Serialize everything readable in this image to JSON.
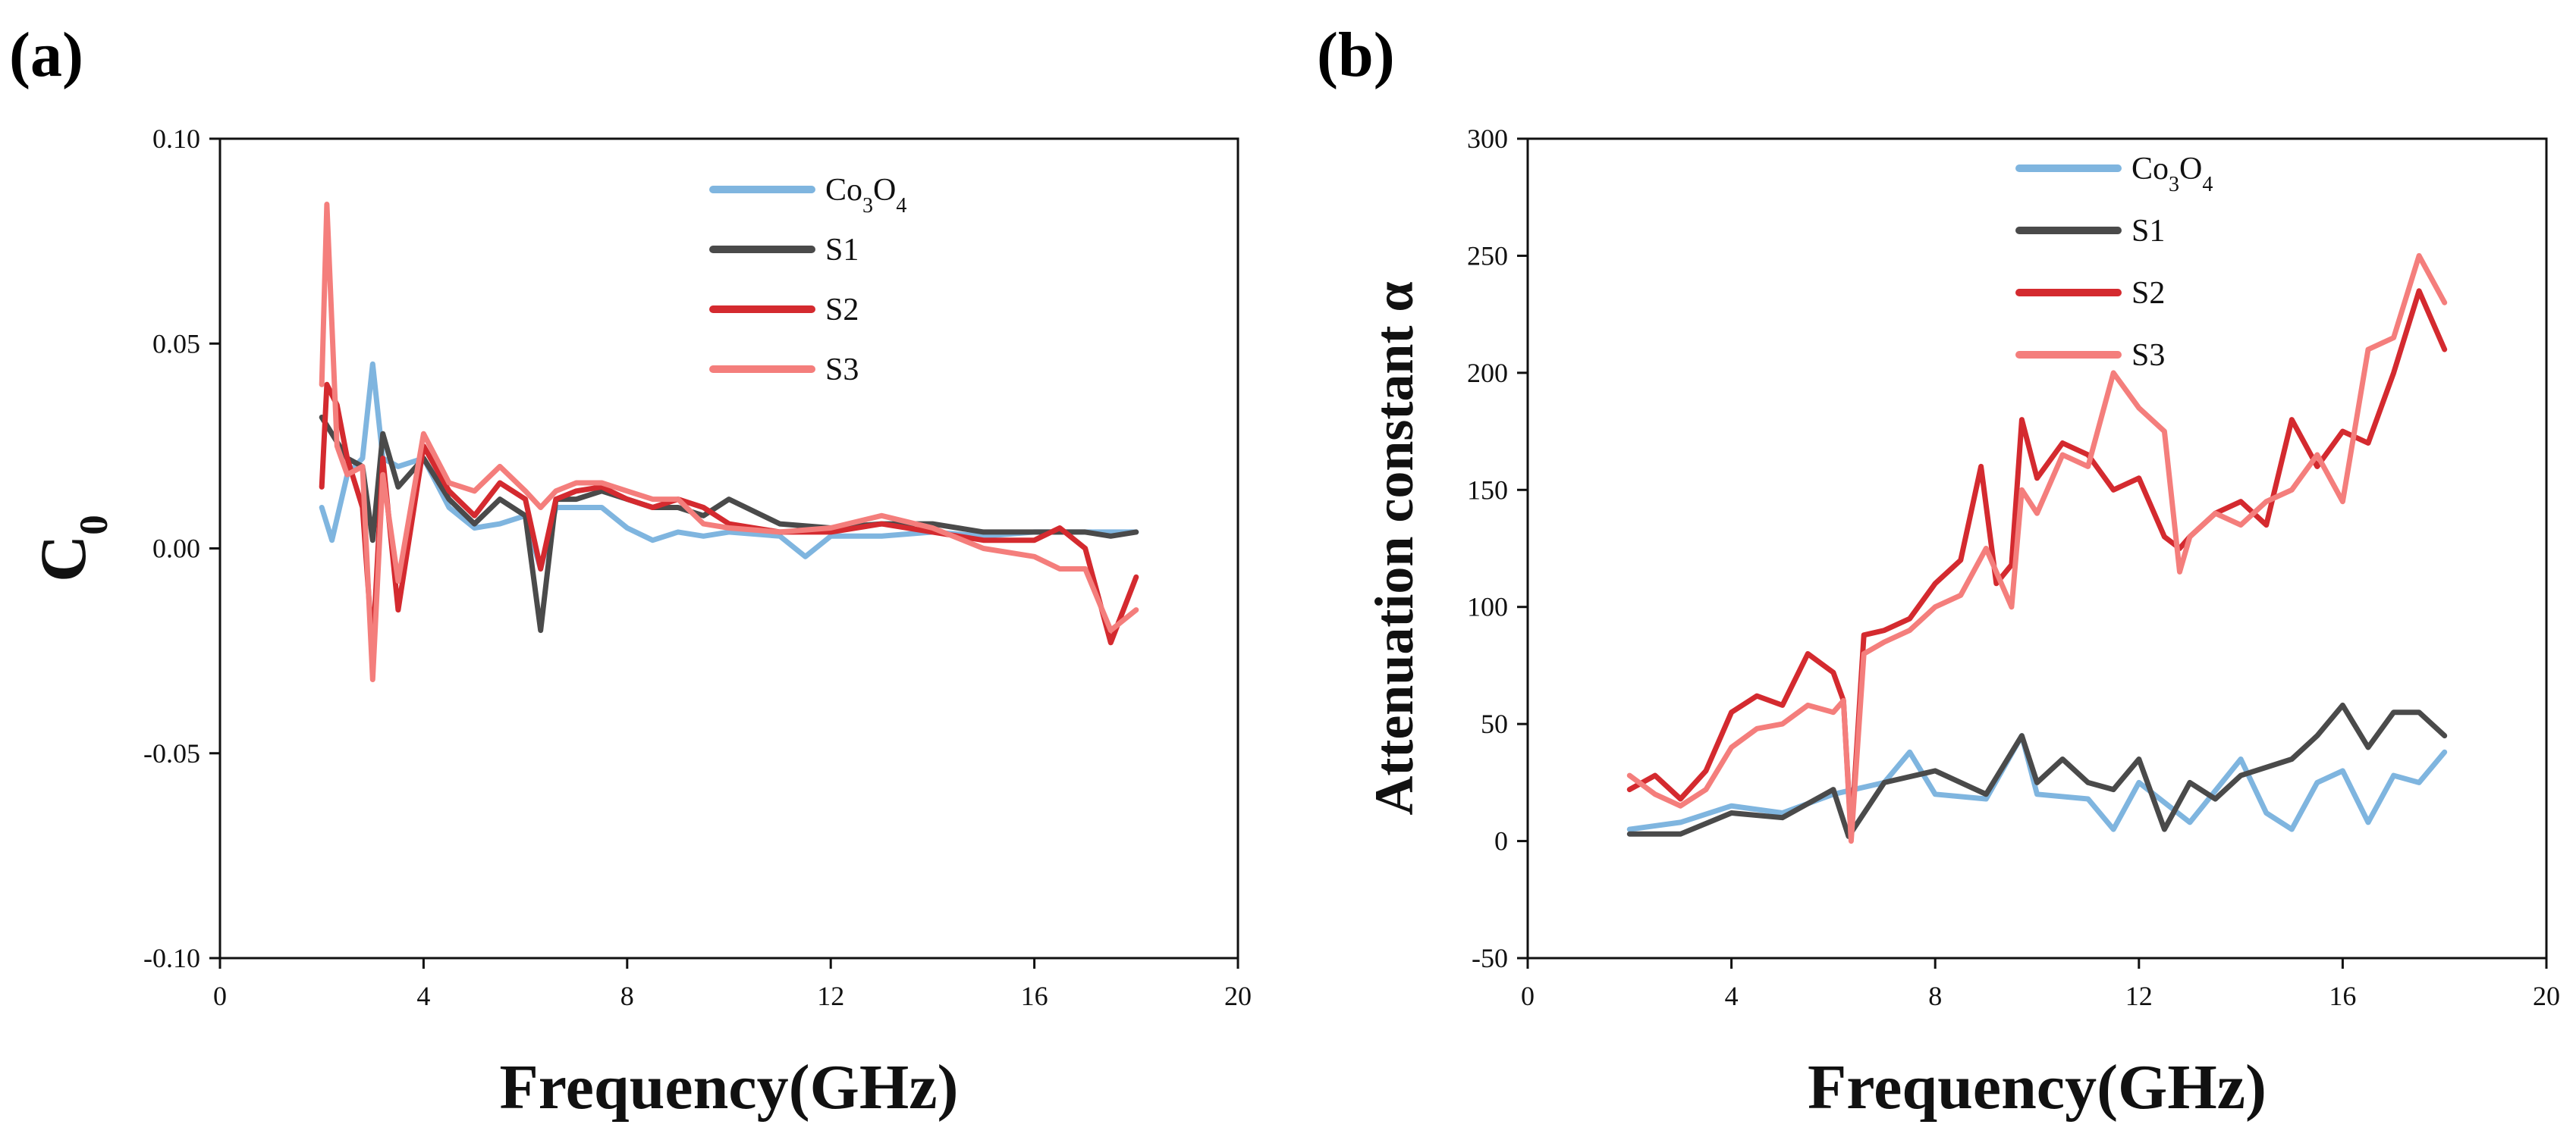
{
  "chart_data": [
    {
      "type": "line",
      "panel_label": "(a)",
      "xlabel": "Frequency(GHz)",
      "ylabel": "C",
      "ylabel_sub": "0",
      "xlim": [
        0,
        20
      ],
      "ylim": [
        -0.1,
        0.1
      ],
      "xticks": [
        "0",
        "4",
        "8",
        "12",
        "16",
        "20"
      ],
      "yticks": [
        "-0.10",
        "-0.05",
        "0.00",
        "0.05",
        "0.10"
      ],
      "grid": false,
      "legend_position": "top-center",
      "series": [
        {
          "name": "Co3O4",
          "color": "#7fb5df",
          "x": [
            2.0,
            2.2,
            2.5,
            2.8,
            3.0,
            3.2,
            3.5,
            4.0,
            4.5,
            5.0,
            5.5,
            6.0,
            6.3,
            6.6,
            7.0,
            7.5,
            8.0,
            8.5,
            9.0,
            9.5,
            10.0,
            11.0,
            11.5,
            12.0,
            13.0,
            14.0,
            15.0,
            16.0,
            17.0,
            18.0
          ],
          "y": [
            0.01,
            0.002,
            0.018,
            0.022,
            0.045,
            0.022,
            0.02,
            0.022,
            0.01,
            0.005,
            0.006,
            0.008,
            -0.005,
            0.01,
            0.01,
            0.01,
            0.005,
            0.002,
            0.004,
            0.003,
            0.004,
            0.003,
            -0.002,
            0.003,
            0.003,
            0.004,
            0.003,
            0.004,
            0.004,
            0.004
          ]
        },
        {
          "name": "S1",
          "color": "#4a4a4a",
          "x": [
            2.0,
            2.2,
            2.5,
            2.8,
            3.0,
            3.2,
            3.5,
            4.0,
            4.5,
            5.0,
            5.5,
            6.0,
            6.3,
            6.6,
            7.0,
            7.5,
            8.0,
            8.5,
            9.0,
            9.5,
            10.0,
            11.0,
            12.0,
            13.0,
            14.0,
            15.0,
            16.0,
            16.5,
            17.0,
            17.5,
            18.0
          ],
          "y": [
            0.032,
            0.028,
            0.022,
            0.02,
            0.002,
            0.028,
            0.015,
            0.022,
            0.012,
            0.006,
            0.012,
            0.008,
            -0.02,
            0.012,
            0.012,
            0.014,
            0.012,
            0.01,
            0.01,
            0.008,
            0.012,
            0.006,
            0.005,
            0.006,
            0.006,
            0.004,
            0.004,
            0.004,
            0.004,
            0.003,
            0.004
          ]
        },
        {
          "name": "S2",
          "color": "#d42a2f",
          "x": [
            2.0,
            2.1,
            2.3,
            2.5,
            2.8,
            3.0,
            3.2,
            3.5,
            4.0,
            4.5,
            5.0,
            5.5,
            6.0,
            6.3,
            6.6,
            7.0,
            7.5,
            8.0,
            8.5,
            9.0,
            9.5,
            10.0,
            11.0,
            12.0,
            13.0,
            14.0,
            15.0,
            16.0,
            16.5,
            17.0,
            17.5,
            18.0
          ],
          "y": [
            0.015,
            0.04,
            0.035,
            0.022,
            0.01,
            -0.025,
            0.022,
            -0.015,
            0.025,
            0.014,
            0.008,
            0.016,
            0.012,
            -0.005,
            0.012,
            0.014,
            0.015,
            0.012,
            0.01,
            0.012,
            0.01,
            0.006,
            0.004,
            0.004,
            0.006,
            0.004,
            0.002,
            0.002,
            0.005,
            0.0,
            -0.023,
            -0.007
          ]
        },
        {
          "name": "S3",
          "color": "#f47e7c",
          "x": [
            2.0,
            2.1,
            2.3,
            2.5,
            2.8,
            3.0,
            3.2,
            3.5,
            4.0,
            4.5,
            5.0,
            5.5,
            6.0,
            6.3,
            6.6,
            7.0,
            7.5,
            8.0,
            8.5,
            9.0,
            9.5,
            10.0,
            11.0,
            12.0,
            13.0,
            14.0,
            15.0,
            16.0,
            16.5,
            17.0,
            17.5,
            18.0
          ],
          "y": [
            0.04,
            0.084,
            0.025,
            0.018,
            0.02,
            -0.032,
            0.018,
            -0.008,
            0.028,
            0.016,
            0.014,
            0.02,
            0.014,
            0.01,
            0.014,
            0.016,
            0.016,
            0.014,
            0.012,
            0.012,
            0.006,
            0.005,
            0.004,
            0.005,
            0.008,
            0.005,
            0.0,
            -0.002,
            -0.005,
            -0.005,
            -0.02,
            -0.015
          ]
        }
      ]
    },
    {
      "type": "line",
      "panel_label": "(b)",
      "xlabel": "Frequency(GHz)",
      "ylabel": "Attenuation constant α",
      "xlim": [
        0,
        20
      ],
      "ylim": [
        -50,
        300
      ],
      "xticks": [
        "0",
        "4",
        "8",
        "12",
        "16",
        "20"
      ],
      "yticks": [
        "-50",
        "0",
        "50",
        "100",
        "150",
        "200",
        "250",
        "300"
      ],
      "grid": false,
      "legend_position": "top-center",
      "series": [
        {
          "name": "Co3O4",
          "color": "#7fb5df",
          "x": [
            2.0,
            3.0,
            4.0,
            5.0,
            6.0,
            7.0,
            7.5,
            8.0,
            9.0,
            9.7,
            10.0,
            11.0,
            11.5,
            12.0,
            13.0,
            14.0,
            14.5,
            15.0,
            15.5,
            16.0,
            16.5,
            17.0,
            17.5,
            18.0
          ],
          "y": [
            5,
            8,
            15,
            12,
            20,
            25,
            38,
            20,
            18,
            45,
            20,
            18,
            5,
            25,
            8,
            35,
            12,
            5,
            25,
            30,
            8,
            28,
            25,
            38
          ]
        },
        {
          "name": "S1",
          "color": "#4a4a4a",
          "x": [
            2.0,
            3.0,
            4.0,
            5.0,
            6.0,
            6.3,
            7.0,
            8.0,
            9.0,
            9.7,
            10.0,
            10.5,
            11.0,
            11.5,
            12.0,
            12.5,
            13.0,
            13.5,
            14.0,
            15.0,
            15.5,
            16.0,
            16.5,
            17.0,
            17.5,
            18.0
          ],
          "y": [
            3,
            3,
            12,
            10,
            22,
            2,
            25,
            30,
            20,
            45,
            25,
            35,
            25,
            22,
            35,
            5,
            25,
            18,
            28,
            35,
            45,
            58,
            40,
            55,
            55,
            45
          ]
        },
        {
          "name": "S2",
          "color": "#d42a2f",
          "x": [
            2.0,
            2.5,
            3.0,
            3.5,
            4.0,
            4.5,
            5.0,
            5.5,
            6.0,
            6.2,
            6.35,
            6.6,
            7.0,
            7.5,
            8.0,
            8.5,
            8.9,
            9.2,
            9.5,
            9.7,
            10.0,
            10.5,
            11.0,
            11.5,
            12.0,
            12.5,
            12.8,
            13.0,
            13.5,
            14.0,
            14.5,
            15.0,
            15.5,
            16.0,
            16.5,
            17.0,
            17.5,
            18.0
          ],
          "y": [
            22,
            28,
            18,
            30,
            55,
            62,
            58,
            80,
            72,
            60,
            2,
            88,
            90,
            95,
            110,
            120,
            160,
            110,
            118,
            180,
            155,
            170,
            165,
            150,
            155,
            130,
            125,
            130,
            140,
            145,
            135,
            180,
            160,
            175,
            170,
            200,
            235,
            210
          ]
        },
        {
          "name": "S3",
          "color": "#f47e7c",
          "x": [
            2.0,
            2.5,
            3.0,
            3.5,
            4.0,
            4.5,
            5.0,
            5.5,
            6.0,
            6.2,
            6.35,
            6.6,
            7.0,
            7.5,
            8.0,
            8.5,
            9.0,
            9.5,
            9.7,
            10.0,
            10.5,
            11.0,
            11.5,
            12.0,
            12.5,
            12.8,
            13.0,
            13.5,
            14.0,
            14.5,
            15.0,
            15.5,
            16.0,
            16.5,
            17.0,
            17.5,
            18.0
          ],
          "y": [
            28,
            20,
            15,
            22,
            40,
            48,
            50,
            58,
            55,
            60,
            0,
            80,
            85,
            90,
            100,
            105,
            125,
            100,
            150,
            140,
            165,
            160,
            200,
            185,
            175,
            115,
            130,
            140,
            135,
            145,
            150,
            165,
            145,
            210,
            215,
            250,
            230
          ]
        }
      ]
    }
  ]
}
